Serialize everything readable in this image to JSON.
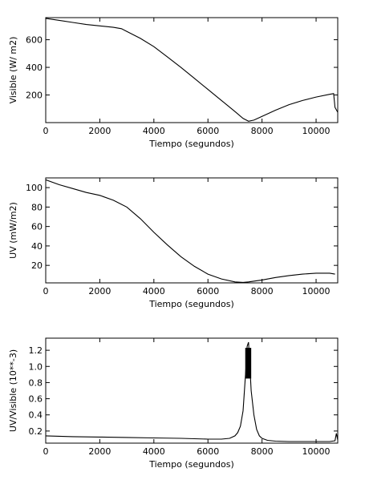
{
  "chart_data": [
    {
      "type": "line",
      "xlabel": "Tiempo (segundos)",
      "ylabel": "Visible (W/ m2)",
      "xlim": [
        0,
        10800
      ],
      "ylim": [
        0,
        760
      ],
      "xticks": [
        0,
        2000,
        4000,
        6000,
        8000,
        10000
      ],
      "xtick_labels": [
        "0",
        "2000",
        "4000",
        "6000",
        "8000",
        "10000"
      ],
      "yticks": [
        200,
        400,
        600
      ],
      "ytick_labels": [
        "200",
        "400",
        "600"
      ],
      "series": [
        {
          "x": [
            0,
            500,
            1000,
            1500,
            2000,
            2500,
            2800,
            3000,
            3500,
            4000,
            4500,
            5000,
            5500,
            6000,
            6500,
            7000,
            7300,
            7500,
            7700,
            8000,
            8500,
            9000,
            9500,
            10000,
            10500,
            10650,
            10700,
            10800
          ],
          "y": [
            755,
            740,
            725,
            710,
            700,
            690,
            680,
            660,
            610,
            550,
            475,
            400,
            320,
            240,
            160,
            80,
            30,
            10,
            18,
            45,
            90,
            130,
            160,
            185,
            205,
            210,
            110,
            75
          ]
        }
      ]
    },
    {
      "type": "line",
      "xlabel": "Tiempo (segundos)",
      "ylabel": "UV (mW/m2)",
      "xlim": [
        0,
        10800
      ],
      "ylim": [
        2,
        110
      ],
      "xticks": [
        0,
        2000,
        4000,
        6000,
        8000,
        10000
      ],
      "xtick_labels": [
        "0",
        "2000",
        "4000",
        "6000",
        "8000",
        "10000"
      ],
      "yticks": [
        20,
        40,
        60,
        80,
        100
      ],
      "ytick_labels": [
        "20",
        "40",
        "60",
        "80",
        "100"
      ],
      "series": [
        {
          "x": [
            0,
            500,
            1000,
            1500,
            2000,
            2500,
            3000,
            3500,
            4000,
            4500,
            5000,
            5500,
            6000,
            6500,
            7000,
            7300,
            7500,
            8000,
            8500,
            9000,
            9500,
            10000,
            10500,
            10700
          ],
          "y": [
            108,
            103,
            99,
            95,
            92,
            87,
            80,
            68,
            54,
            41,
            29,
            19,
            11,
            6,
            3,
            2.5,
            3,
            5,
            7.5,
            9.5,
            11,
            12,
            12,
            11
          ]
        }
      ]
    },
    {
      "type": "line",
      "xlabel": "Tiempo (segundos)",
      "ylabel": "UV/Visible (10**-3)",
      "xlim": [
        0,
        10800
      ],
      "ylim": [
        0.05,
        1.35
      ],
      "xticks": [
        0,
        2000,
        4000,
        6000,
        8000,
        10000
      ],
      "xtick_labels": [
        "0",
        "2000",
        "4000",
        "6000",
        "8000",
        "10000"
      ],
      "yticks": [
        0.2,
        0.4,
        0.6,
        0.8,
        1.0,
        1.2
      ],
      "ytick_labels": [
        "0.2",
        "0.4",
        "0.6",
        "0.8",
        "1.0",
        "1.2"
      ],
      "series": [
        {
          "x": [
            0,
            1000,
            2000,
            3000,
            4000,
            5000,
            6000,
            6500,
            6800,
            7000,
            7100,
            7200,
            7300,
            7350,
            7400,
            7450,
            7500,
            7550,
            7600,
            7700,
            7800,
            7900,
            8000,
            8200,
            8500,
            9000,
            10000,
            10500,
            10700,
            10750,
            10800
          ],
          "y": [
            0.14,
            0.13,
            0.125,
            0.12,
            0.115,
            0.11,
            0.1,
            0.1,
            0.11,
            0.14,
            0.18,
            0.26,
            0.45,
            0.7,
            0.95,
            1.25,
            1.3,
            1.0,
            0.7,
            0.4,
            0.22,
            0.14,
            0.11,
            0.085,
            0.075,
            0.07,
            0.07,
            0.07,
            0.08,
            0.17,
            0.09
          ]
        }
      ],
      "spike_band": {
        "x_from": 7380,
        "x_to": 7600,
        "y_from": 0.85,
        "y_to": 1.23
      }
    }
  ]
}
